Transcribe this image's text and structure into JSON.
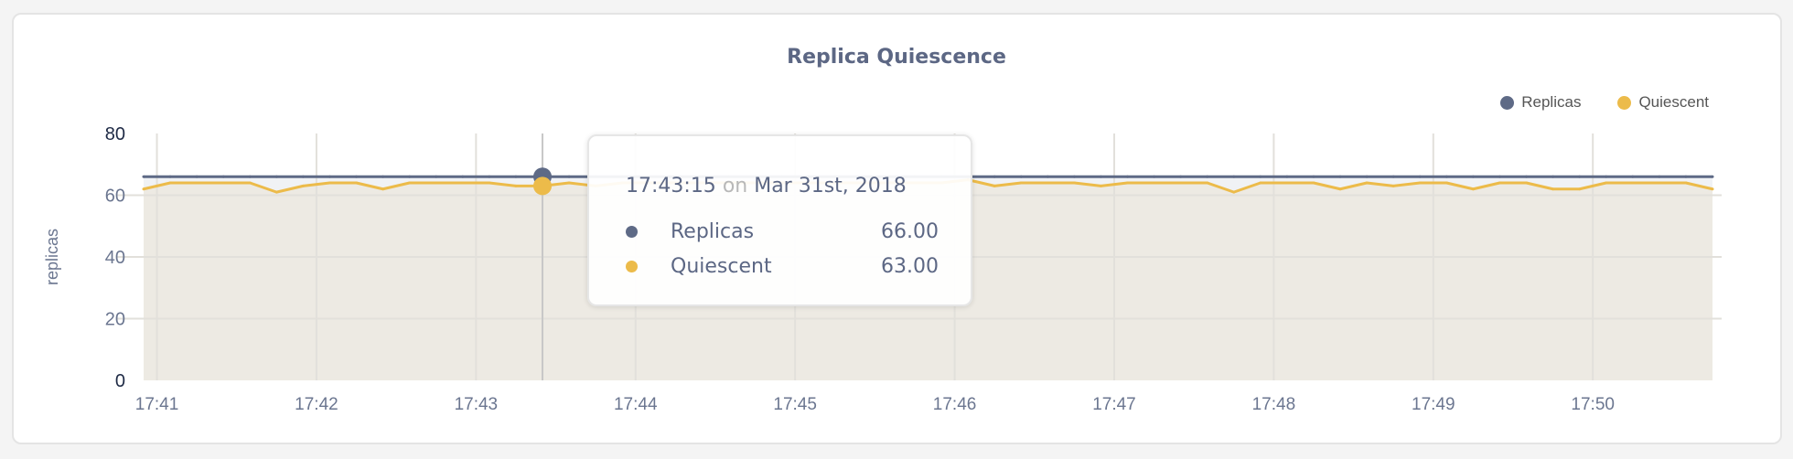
{
  "chart_data": {
    "type": "area",
    "title": "Replica Quiescence",
    "ylabel": "replicas",
    "xlabel": "",
    "ylim": [
      0,
      80
    ],
    "yticks": [
      "0",
      "20",
      "40",
      "60",
      "80"
    ],
    "xticks": [
      "17:41",
      "17:42",
      "17:43",
      "17:44",
      "17:45",
      "17:46",
      "17:47",
      "17:48",
      "17:49",
      "17:50"
    ],
    "grid": true,
    "legend_position": "top-right",
    "x_start": "17:40:55",
    "x_interval_seconds": 10,
    "series": [
      {
        "name": "Replicas",
        "color": "#5e6a86",
        "fill": "#f0f2f5",
        "values": [
          66,
          66,
          66,
          66,
          66,
          66,
          66,
          66,
          66,
          66,
          66,
          66,
          66,
          66,
          66,
          66,
          66,
          66,
          66,
          66,
          66,
          66,
          66,
          66,
          66,
          66,
          66,
          66,
          66,
          66,
          66,
          66,
          66,
          66,
          66,
          66,
          66,
          66,
          66,
          66,
          66,
          66,
          66,
          66,
          66,
          66,
          66,
          66,
          66,
          66,
          66,
          66,
          66,
          66,
          66,
          66,
          66,
          66,
          66,
          66
        ]
      },
      {
        "name": "Quiescent",
        "color": "#ecbb4a",
        "fill": "#edeae3",
        "values": [
          62,
          64,
          64,
          64,
          64,
          61,
          63,
          64,
          64,
          62,
          64,
          64,
          64,
          64,
          63,
          63,
          64,
          63,
          64,
          64,
          64,
          64,
          64,
          64,
          64,
          64,
          64,
          64,
          64,
          64,
          64,
          65,
          63,
          64,
          64,
          64,
          63,
          64,
          64,
          64,
          64,
          61,
          64,
          64,
          64,
          62,
          64,
          63,
          64,
          64,
          62,
          64,
          64,
          62,
          62,
          64,
          64,
          64,
          64,
          62
        ]
      }
    ]
  },
  "tooltip": {
    "time": "17:43:15",
    "on": "on",
    "date": "Mar 31st, 2018",
    "hover_index": 15,
    "rows": [
      {
        "label": "Replicas",
        "value": "66.00",
        "color": "#5e6a86"
      },
      {
        "label": "Quiescent",
        "value": "63.00",
        "color": "#ecbb4a"
      }
    ]
  }
}
